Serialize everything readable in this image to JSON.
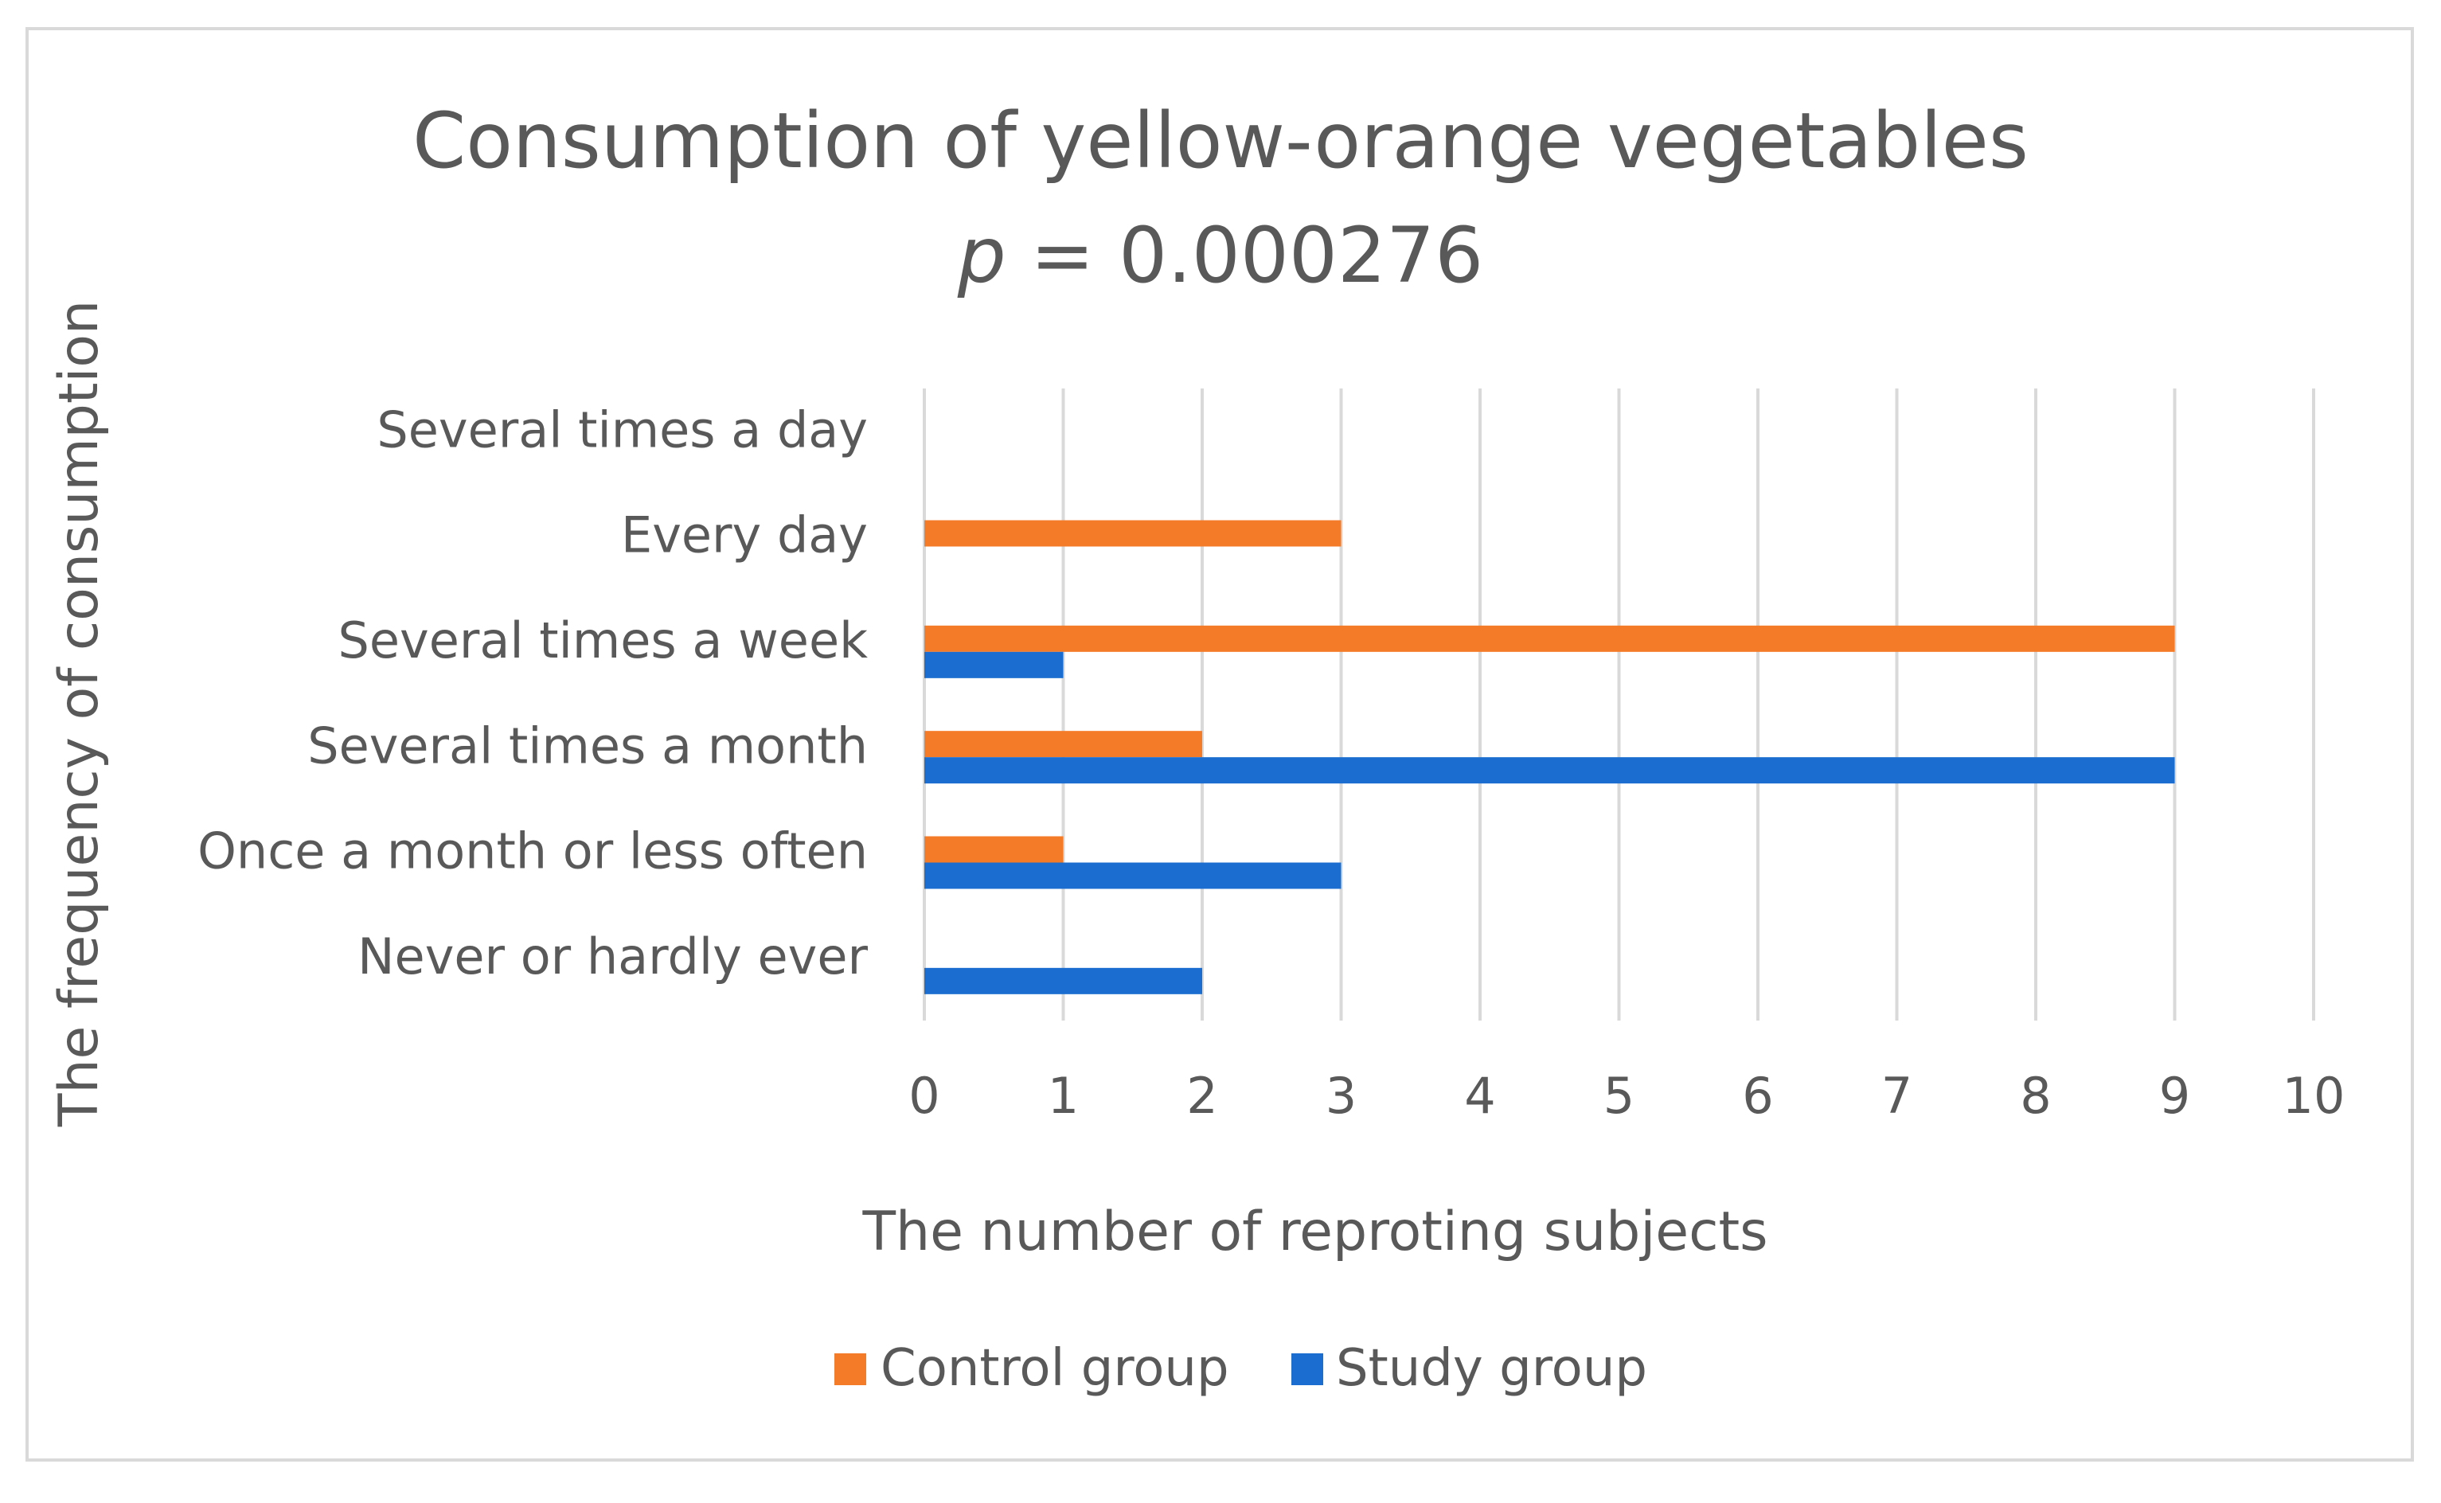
{
  "chart_data": {
    "type": "bar",
    "orientation": "horizontal",
    "title": "Consumption of yellow-orange vegetables",
    "subtitle_italic": "p",
    "subtitle_rest": " = 0.000276",
    "categories": [
      "Several times a day",
      "Every day",
      "Several times a week",
      "Several times a month",
      "Once a month or less often",
      "Never or hardly ever"
    ],
    "series": [
      {
        "name": "Control group",
        "color": "#f47b27",
        "values": [
          0,
          3,
          9,
          2,
          1,
          0
        ]
      },
      {
        "name": "Study group",
        "color": "#1b6ecf",
        "values": [
          0,
          0,
          1,
          9,
          3,
          2
        ]
      }
    ],
    "xlabel": "The number of reproting subjects",
    "ylabel": "The frequency of consumption",
    "xlim": [
      0,
      10
    ],
    "xticks": [
      "0",
      "1",
      "2",
      "3",
      "4",
      "5",
      "6",
      "7",
      "8",
      "9",
      "10"
    ],
    "grid": true,
    "legend_position": "bottom"
  }
}
